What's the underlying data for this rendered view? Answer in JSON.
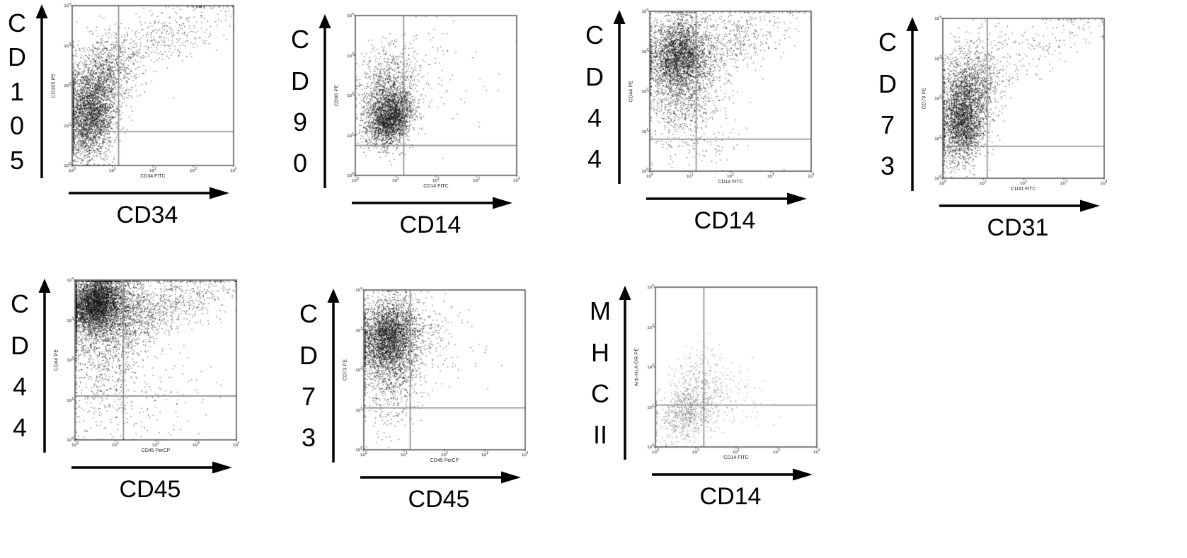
{
  "figure": {
    "background": "#ffffff",
    "dot_default_color": "#111111",
    "gate_default_color": "#8c8c8c",
    "frame_color": "#5a5a5a"
  },
  "chart_data": [
    {
      "type": "scatter",
      "big_ylabel": "CD105",
      "big_ylabel_lines": [
        "C",
        "D",
        "1",
        "0",
        "5"
      ],
      "big_xlabel": "CD34",
      "ylabel": "CD105 PE",
      "xlabel": "CD34 FITC",
      "x_ticks": [
        "10^0",
        "10^1",
        "10^2",
        "10^3",
        "10^4"
      ],
      "y_ticks": [
        "10^0",
        "10^1",
        "10^2",
        "10^3",
        "10^4"
      ],
      "xlim_log": [
        0,
        4
      ],
      "ylim_log": [
        0,
        4
      ],
      "gate_x_log": 1.15,
      "gate_y_log": 0.85,
      "gate_color": "#8c8c8c",
      "dot_color": "#111111",
      "dot_alpha": 0.8,
      "seed": 11,
      "clusters": [
        {
          "cx": 0.45,
          "cy": 1.3,
          "sx": 0.3,
          "sy": 0.6,
          "n": 2600,
          "rho": 0.15
        },
        {
          "cx": 0.75,
          "cy": 2.2,
          "sx": 0.45,
          "sy": 0.6,
          "n": 900,
          "rho": 0.3
        },
        {
          "cx": 1.6,
          "cy": 2.9,
          "sx": 1.0,
          "sy": 0.65,
          "n": 380,
          "rho": 0.8
        },
        {
          "cx": 2.8,
          "cy": 3.4,
          "sx": 0.7,
          "sy": 0.45,
          "n": 120,
          "rho": 0.6
        }
      ]
    },
    {
      "type": "scatter",
      "big_ylabel": "CD90",
      "big_ylabel_lines": [
        "C",
        "D",
        "9",
        "0"
      ],
      "big_xlabel": "CD14",
      "ylabel": "CD90 PE",
      "xlabel": "CD14 FITC",
      "x_ticks": [
        "10^0",
        "10^1",
        "10^2",
        "10^3",
        "10^4"
      ],
      "y_ticks": [
        "10^0",
        "10^1",
        "10^2",
        "10^3",
        "10^4"
      ],
      "xlim_log": [
        0,
        4
      ],
      "ylim_log": [
        0,
        4
      ],
      "gate_x_log": 1.2,
      "gate_y_log": 0.75,
      "gate_color": "#8c8c8c",
      "dot_color": "#111111",
      "dot_alpha": 0.8,
      "seed": 22,
      "clusters": [
        {
          "cx": 0.85,
          "cy": 1.45,
          "sx": 0.28,
          "sy": 0.35,
          "n": 2400,
          "rho": 0.2
        },
        {
          "cx": 0.75,
          "cy": 2.2,
          "sx": 0.35,
          "sy": 0.5,
          "n": 700,
          "rho": 0.1
        },
        {
          "cx": 1.3,
          "cy": 2.6,
          "sx": 0.6,
          "sy": 0.6,
          "n": 160,
          "rho": 0.5
        },
        {
          "cx": 2.4,
          "cy": 2.2,
          "sx": 0.8,
          "sy": 0.8,
          "n": 40,
          "rho": 0.2
        }
      ]
    },
    {
      "type": "scatter",
      "big_ylabel": "CD44",
      "big_ylabel_lines": [
        "C",
        "D",
        "4",
        "4"
      ],
      "big_xlabel": "CD14",
      "ylabel": "CD44 PE",
      "xlabel": "CD14 FITC",
      "x_ticks": [
        "10^0",
        "10^1",
        "10^2",
        "10^3",
        "10^4"
      ],
      "y_ticks": [
        "10^0",
        "10^1",
        "10^2",
        "10^3",
        "10^4"
      ],
      "xlim_log": [
        0,
        4
      ],
      "ylim_log": [
        0,
        4
      ],
      "gate_x_log": 1.15,
      "gate_y_log": 0.8,
      "gate_color": "#8c8c8c",
      "dot_color": "#111111",
      "dot_alpha": 0.8,
      "seed": 33,
      "clusters": [
        {
          "cx": 0.7,
          "cy": 2.9,
          "sx": 0.38,
          "sy": 0.5,
          "n": 2800,
          "rho": 0.1
        },
        {
          "cx": 0.9,
          "cy": 1.9,
          "sx": 0.45,
          "sy": 0.6,
          "n": 700,
          "rho": 0.2
        },
        {
          "cx": 1.9,
          "cy": 3.2,
          "sx": 0.8,
          "sy": 0.5,
          "n": 550,
          "rho": 0.6
        },
        {
          "cx": 1.2,
          "cy": 0.9,
          "sx": 0.6,
          "sy": 0.5,
          "n": 120,
          "rho": 0.1
        }
      ]
    },
    {
      "type": "scatter",
      "big_ylabel": "CD73",
      "big_ylabel_lines": [
        "C",
        "D",
        "7",
        "3"
      ],
      "big_xlabel": "CD31",
      "ylabel": "CD73 PE",
      "xlabel": "CD31 FITC",
      "x_ticks": [
        "10^0",
        "10^1",
        "10^2",
        "10^3",
        "10^4"
      ],
      "y_ticks": [
        "10^0",
        "10^1",
        "10^2",
        "10^3",
        "10^4"
      ],
      "xlim_log": [
        0,
        4
      ],
      "ylim_log": [
        0,
        4
      ],
      "gate_x_log": 1.1,
      "gate_y_log": 0.8,
      "gate_color": "#8c8c8c",
      "dot_color": "#111111",
      "dot_alpha": 0.8,
      "seed": 44,
      "clusters": [
        {
          "cx": 0.5,
          "cy": 1.5,
          "sx": 0.3,
          "sy": 0.55,
          "n": 2700,
          "rho": 0.2
        },
        {
          "cx": 0.7,
          "cy": 2.5,
          "sx": 0.4,
          "sy": 0.55,
          "n": 700,
          "rho": 0.2
        },
        {
          "cx": 1.8,
          "cy": 3.0,
          "sx": 0.9,
          "sy": 0.6,
          "n": 200,
          "rho": 0.7
        },
        {
          "cx": 3.2,
          "cy": 3.6,
          "sx": 0.5,
          "sy": 0.3,
          "n": 60,
          "rho": 0.4
        }
      ]
    },
    {
      "type": "scatter",
      "big_ylabel": "CD44",
      "big_ylabel_lines": [
        "C",
        "D",
        "4",
        "4"
      ],
      "big_xlabel": "CD45",
      "ylabel": "CD44 PE",
      "xlabel": "CD45 PerCP",
      "x_ticks": [
        "10^0",
        "10^1",
        "10^2",
        "10^3",
        "10^4"
      ],
      "y_ticks": [
        "10^0",
        "10^1",
        "10^2",
        "10^3",
        "10^4"
      ],
      "xlim_log": [
        0,
        4
      ],
      "ylim_log": [
        0,
        4
      ],
      "gate_x_log": 1.2,
      "gate_y_log": 1.1,
      "gate_color": "#8c8c8c",
      "dot_color": "#111111",
      "dot_alpha": 0.8,
      "seed": 55,
      "clusters": [
        {
          "cx": 0.5,
          "cy": 3.45,
          "sx": 0.35,
          "sy": 0.35,
          "n": 3800,
          "rho": 0.2
        },
        {
          "cx": 1.0,
          "cy": 3.1,
          "sx": 0.6,
          "sy": 0.5,
          "n": 1200,
          "rho": 0.4
        },
        {
          "cx": 2.2,
          "cy": 3.3,
          "sx": 1.1,
          "sy": 0.55,
          "n": 800,
          "rho": 0.75
        },
        {
          "cx": 0.8,
          "cy": 2.0,
          "sx": 0.5,
          "sy": 0.9,
          "n": 600,
          "rho": 0.2
        },
        {
          "cx": 1.6,
          "cy": 1.0,
          "sx": 0.9,
          "sy": 0.6,
          "n": 150,
          "rho": 0.3
        }
      ]
    },
    {
      "type": "scatter",
      "big_ylabel": "CD73",
      "big_ylabel_lines": [
        "C",
        "D",
        "7",
        "3"
      ],
      "big_xlabel": "CD45",
      "ylabel": "CD73 PE",
      "xlabel": "CD45 PerCP",
      "x_ticks": [
        "10^0",
        "10^1",
        "10^2",
        "10^3",
        "10^4"
      ],
      "y_ticks": [
        "10^0",
        "10^1",
        "10^2",
        "10^3",
        "10^4"
      ],
      "xlim_log": [
        0,
        4
      ],
      "ylim_log": [
        0,
        4
      ],
      "gate_x_log": 1.15,
      "gate_y_log": 1.05,
      "gate_color": "#8c8c8c",
      "dot_color": "#111111",
      "dot_alpha": 0.8,
      "seed": 66,
      "clusters": [
        {
          "cx": 0.6,
          "cy": 2.85,
          "sx": 0.35,
          "sy": 0.45,
          "n": 3000,
          "rho": 0.15
        },
        {
          "cx": 0.7,
          "cy": 1.9,
          "sx": 0.4,
          "sy": 0.65,
          "n": 800,
          "rho": 0.2
        },
        {
          "cx": 1.4,
          "cy": 2.7,
          "sx": 0.5,
          "sy": 0.5,
          "n": 200,
          "rho": 0.4
        },
        {
          "cx": 2.6,
          "cy": 2.3,
          "sx": 0.6,
          "sy": 0.5,
          "n": 25,
          "rho": 0.2
        }
      ]
    },
    {
      "type": "scatter",
      "big_ylabel": "MHC II",
      "big_ylabel_lines": [
        "M",
        "H",
        "C",
        "II"
      ],
      "big_xlabel": "CD14",
      "ylabel": "Anti-HLA-DR PE",
      "xlabel": "CD14 FITC",
      "x_ticks": [
        "10^0",
        "10^1",
        "10^2",
        "10^3",
        "10^4"
      ],
      "y_ticks": [
        "10^0",
        "10^1",
        "10^2",
        "10^3",
        "10^4"
      ],
      "xlim_log": [
        0,
        4
      ],
      "ylim_log": [
        0,
        4
      ],
      "gate_x_log": 1.2,
      "gate_y_log": 1.05,
      "gate_color": "#8c8c8c",
      "dot_color": "#3a3a3a",
      "dot_alpha": 0.55,
      "seed": 77,
      "clusters": [
        {
          "cx": 0.8,
          "cy": 0.85,
          "sx": 0.4,
          "sy": 0.4,
          "n": 800,
          "rho": 0.3
        },
        {
          "cx": 1.0,
          "cy": 1.6,
          "sx": 0.4,
          "sy": 0.45,
          "n": 300,
          "rho": 0.2
        },
        {
          "cx": 1.9,
          "cy": 1.2,
          "sx": 0.5,
          "sy": 0.45,
          "n": 90,
          "rho": 0.2
        }
      ]
    }
  ]
}
